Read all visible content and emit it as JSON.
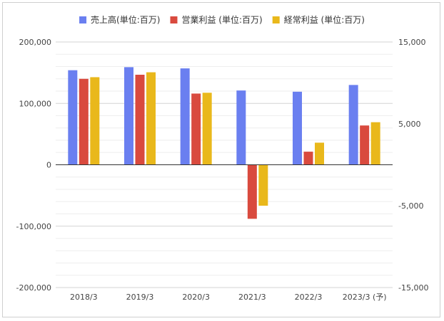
{
  "chart_data": {
    "type": "bar",
    "title": "",
    "xlabel": "",
    "ylabel": "",
    "categories": [
      "2018/3",
      "2019/3",
      "2020/3",
      "2021/3",
      "2022/3",
      "2023/3 (予)"
    ],
    "series": [
      {
        "name": "売上高(単位:百万)",
        "axis": "left",
        "color": "#6a7ff0",
        "values": [
          154000,
          159000,
          157000,
          121000,
          119000,
          130000
        ]
      },
      {
        "name": "営業利益 (単位:百万)",
        "axis": "right",
        "color": "#d94a3e",
        "values": [
          10500,
          11000,
          8700,
          -6600,
          1600,
          4800
        ]
      },
      {
        "name": "経常利益 (単位:百万)",
        "axis": "right",
        "color": "#e9b81b",
        "values": [
          10700,
          11300,
          8800,
          -5000,
          2700,
          5200
        ]
      }
    ],
    "ylim_left": [
      -200000,
      200000
    ],
    "ylim_right": [
      -15000,
      15000
    ],
    "left_ticks": [
      {
        "value": 200000,
        "label": "200,000"
      },
      {
        "value": 100000,
        "label": "100,000"
      },
      {
        "value": 0,
        "label": "0"
      },
      {
        "value": -100000,
        "label": "-100,000"
      },
      {
        "value": -200000,
        "label": "-200,000"
      }
    ],
    "right_ticks": [
      {
        "value": 15000,
        "label": "15,000"
      },
      {
        "value": 5000,
        "label": "5,000"
      },
      {
        "value": -5000,
        "label": "-5,000"
      },
      {
        "value": -15000,
        "label": "-15,000"
      }
    ],
    "grid": true,
    "legend_position": "top"
  }
}
